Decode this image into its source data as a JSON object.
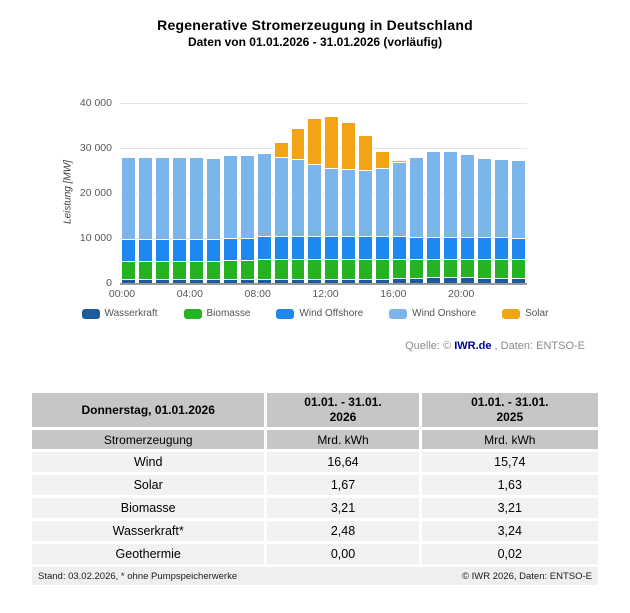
{
  "header": {
    "title": "Regenerative Stromerzeugung in Deutschland",
    "subtitle": "Daten von 01.01.2026 - 31.01.2026 (vorläufig)"
  },
  "chart": {
    "y_axis_label": "Leistung [MW]",
    "y_ticks": [
      "40 000",
      "30 000",
      "20 000",
      "10 000",
      "0"
    ],
    "x_tick_hours": [
      0,
      4,
      8,
      12,
      16,
      20
    ],
    "x_tick_labels": [
      "00:00",
      "04:00",
      "08:00",
      "12:00",
      "16:00",
      "20:00"
    ]
  },
  "chart_data": {
    "type": "bar",
    "stacked": true,
    "title": "Regenerative Stromerzeugung in Deutschland",
    "subtitle": "Daten von 01.01.2026 - 31.01.2026 (vorläufig)",
    "xlabel": "",
    "ylabel": "Leistung [MW]",
    "ylim": [
      0,
      40000
    ],
    "grid": true,
    "legend_position": "bottom",
    "categories": [
      "00:00",
      "01:00",
      "02:00",
      "03:00",
      "04:00",
      "05:00",
      "06:00",
      "07:00",
      "08:00",
      "09:00",
      "10:00",
      "11:00",
      "12:00",
      "13:00",
      "14:00",
      "15:00",
      "16:00",
      "17:00",
      "18:00",
      "19:00",
      "20:00",
      "21:00",
      "22:00",
      "23:00"
    ],
    "series": [
      {
        "name": "Wasserkraft",
        "color": "#1e5b9e",
        "values": [
          800,
          800,
          800,
          800,
          800,
          800,
          800,
          800,
          1000,
          1000,
          1000,
          1000,
          1000,
          1000,
          1000,
          1000,
          1100,
          1200,
          1300,
          1300,
          1300,
          1200,
          1200,
          1200
        ]
      },
      {
        "name": "Biomasse",
        "color": "#26b321",
        "values": [
          4000,
          4000,
          4000,
          4000,
          4000,
          4000,
          4300,
          4300,
          4400,
          4400,
          4400,
          4400,
          4400,
          4400,
          4400,
          4400,
          4300,
          4100,
          4100,
          4100,
          4100,
          4100,
          4100,
          4100
        ]
      },
      {
        "name": "Wind Offshore",
        "color": "#1e87f0",
        "values": [
          5000,
          5000,
          5000,
          5000,
          5000,
          5000,
          5000,
          4900,
          5000,
          5000,
          5000,
          5100,
          5100,
          5100,
          5100,
          5000,
          5000,
          4900,
          4900,
          4900,
          4900,
          4900,
          4900,
          4800
        ]
      },
      {
        "name": "Wind Onshore",
        "color": "#7cb5ec",
        "values": [
          18300,
          18300,
          18100,
          18100,
          18100,
          18000,
          18400,
          18500,
          18400,
          17700,
          17100,
          16000,
          15000,
          14900,
          14700,
          15100,
          16500,
          17900,
          19100,
          19000,
          18400,
          17600,
          17300,
          17200
        ]
      },
      {
        "name": "Solar",
        "color": "#f2a416",
        "values": [
          0,
          0,
          0,
          0,
          0,
          0,
          0,
          0,
          200,
          3300,
          7000,
          10200,
          11700,
          10400,
          7800,
          3800,
          400,
          0,
          0,
          0,
          0,
          0,
          0,
          0
        ]
      }
    ]
  },
  "source": {
    "prefix": "Quelle: © ",
    "link": "IWR.de",
    "suffix": " , Daten: ENTSO-E"
  },
  "table": {
    "header": {
      "col1": "Donnerstag, 01.01.2026",
      "col2_line1": "01.01. - 31.01.",
      "col2_line2": "2026",
      "col3_line1": "01.01. - 31.01.",
      "col3_line2": "2025"
    },
    "subheader": {
      "col1": "Stromerzeugung",
      "col2": "Mrd. kWh",
      "col3": "Mrd. kWh"
    },
    "rows": [
      {
        "label": "Wind",
        "v2026": "16,64",
        "v2025": "15,74"
      },
      {
        "label": "Solar",
        "v2026": "1,67",
        "v2025": "1,63"
      },
      {
        "label": "Biomasse",
        "v2026": "3,21",
        "v2025": "3,21"
      },
      {
        "label": "Wasserkraft*",
        "v2026": "2,48",
        "v2025": "3,24"
      },
      {
        "label": "Geothermie",
        "v2026": "0,00",
        "v2025": "0,02"
      }
    ],
    "footer_left": "Stand: 03.02.2026, * ohne Pumpspeicherwerke",
    "footer_right": "© IWR 2026, Daten: ENTSO-E"
  }
}
